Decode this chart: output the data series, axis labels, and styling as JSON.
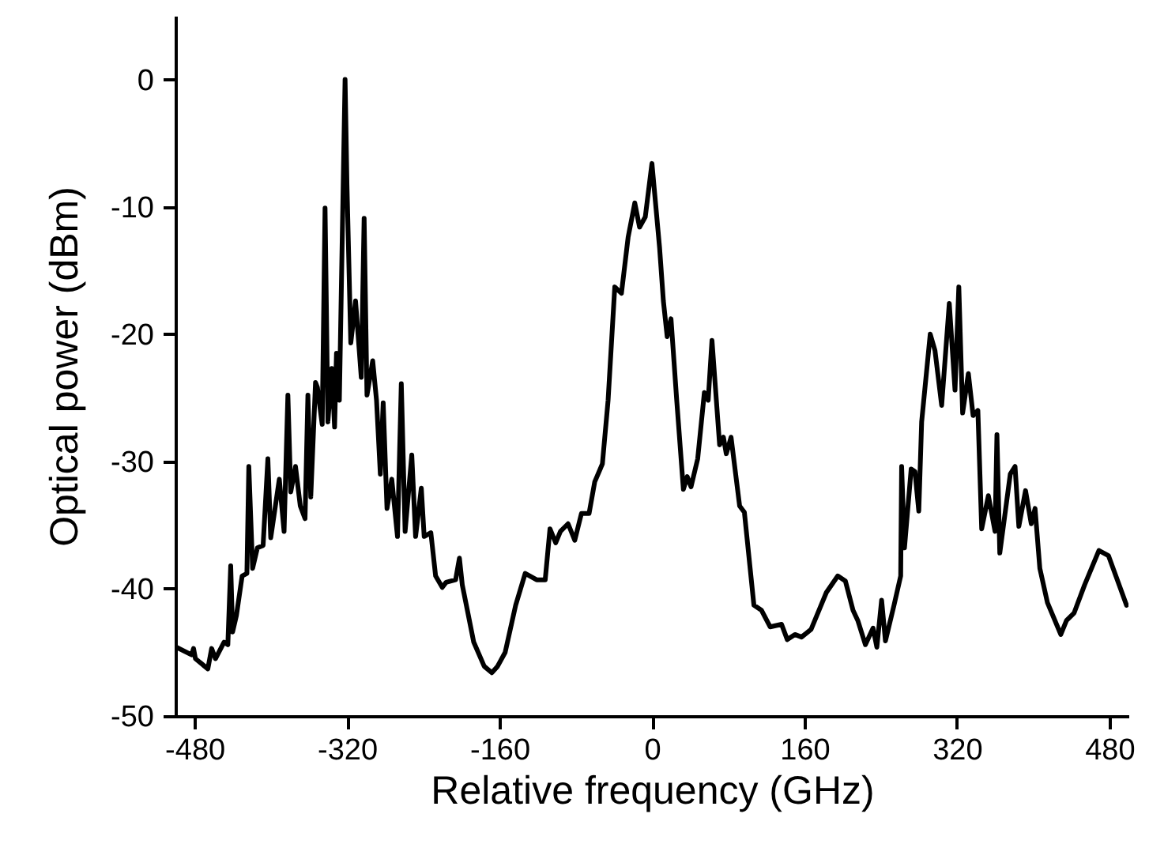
{
  "chart_data": {
    "type": "line",
    "xlabel": "Relative frequency (GHz)",
    "ylabel": "Optical power (dBm)",
    "xlim": [
      -500,
      500
    ],
    "xticks": [
      -480,
      -320,
      -160,
      0,
      160,
      320,
      480
    ],
    "ylim": [
      -50,
      5
    ],
    "yticks": [
      -50,
      -40,
      -30,
      -20,
      -10,
      0
    ],
    "grid": false,
    "marker": "none",
    "line_style": "solid",
    "series": [
      {
        "color": "#000000",
        "x": [
          -499,
          -483,
          -481,
          -479,
          -466,
          -462,
          -458,
          -449,
          -445,
          -442,
          -440,
          -436,
          -430,
          -425,
          -423,
          -419,
          -414,
          -408,
          -403,
          -400,
          -391,
          -386,
          -382,
          -379,
          -374,
          -369,
          -364,
          -361,
          -358,
          -353,
          -351,
          -346,
          -343,
          -340,
          -336,
          -333,
          -331,
          -328,
          -322,
          -320,
          -316,
          -311,
          -309,
          -305,
          -302,
          -299,
          -293,
          -289,
          -285,
          -282,
          -278,
          -273,
          -267,
          -263,
          -259,
          -252,
          -248,
          -242,
          -239,
          -232,
          -227,
          -220,
          -216,
          -206,
          -202,
          -199,
          -187,
          -176,
          -168,
          -162,
          -154,
          -143,
          -133,
          -121,
          -112,
          -107,
          -101,
          -96,
          -88,
          -81,
          -74,
          -66,
          -60,
          -52,
          -46,
          -39,
          -32,
          -25,
          -18,
          -13,
          -7,
          0,
          8,
          12,
          16,
          20,
          26,
          33,
          37,
          41,
          48,
          55,
          59,
          63,
          71,
          75,
          78,
          83,
          92,
          97,
          107,
          115,
          124,
          136,
          142,
          150,
          157,
          167,
          183,
          195,
          203,
          211,
          216,
          224,
          232,
          236,
          241,
          245,
          254,
          261,
          262,
          265,
          272,
          276,
          280,
          283,
          292,
          297,
          304,
          312,
          318,
          322,
          326,
          332,
          337,
          342,
          346,
          353,
          360,
          362,
          365,
          376,
          381,
          385,
          392,
          398,
          402,
          407,
          415,
          429,
          435,
          443,
          454,
          469,
          479,
          498
        ],
        "values": [
          -44.6,
          -45.2,
          -44.7,
          -45.5,
          -46.3,
          -44.7,
          -45.5,
          -44.2,
          -44.4,
          -38.2,
          -43.4,
          -42.1,
          -39.0,
          -38.8,
          -30.4,
          -38.4,
          -36.8,
          -36.6,
          -29.8,
          -36.0,
          -31.4,
          -35.5,
          -24.8,
          -32.4,
          -30.4,
          -33.5,
          -34.5,
          -24.8,
          -32.8,
          -23.8,
          -24.2,
          -27.1,
          -10.1,
          -26.9,
          -22.7,
          -27.3,
          -21.5,
          -25.2,
          0,
          -8.3,
          -20.7,
          -17.4,
          -19.4,
          -23.4,
          -10.9,
          -24.8,
          -22.1,
          -25.2,
          -31.0,
          -25.4,
          -33.7,
          -31.4,
          -35.9,
          -23.9,
          -35.5,
          -29.5,
          -35.9,
          -32.1,
          -35.9,
          -35.6,
          -39.0,
          -39.9,
          -39.5,
          -39.3,
          -37.6,
          -39.7,
          -44.2,
          -46.1,
          -46.6,
          -46.1,
          -45.0,
          -41.3,
          -38.8,
          -39.3,
          -39.3,
          -35.3,
          -36.4,
          -35.5,
          -34.9,
          -36.2,
          -34.1,
          -34.1,
          -31.6,
          -30.2,
          -25.2,
          -16.3,
          -16.8,
          -12.4,
          -9.7,
          -11.6,
          -10.8,
          -6.6,
          -13.2,
          -17.4,
          -20.2,
          -18.8,
          -25.2,
          -32.2,
          -31.2,
          -32.0,
          -29.8,
          -24.6,
          -25.2,
          -20.5,
          -28.7,
          -28.1,
          -29.4,
          -28.1,
          -33.5,
          -34.0,
          -41.3,
          -41.7,
          -43.0,
          -42.8,
          -44.0,
          -43.6,
          -43.8,
          -43.2,
          -40.3,
          -39.0,
          -39.4,
          -41.7,
          -42.5,
          -44.4,
          -43.1,
          -44.6,
          -40.9,
          -44.1,
          -41.3,
          -39.0,
          -30.4,
          -36.8,
          -30.6,
          -30.8,
          -33.9,
          -26.9,
          -20.0,
          -21.3,
          -25.6,
          -17.6,
          -24.4,
          -16.3,
          -26.2,
          -23.1,
          -26.4,
          -26.0,
          -35.3,
          -32.7,
          -35.5,
          -27.9,
          -37.2,
          -31.0,
          -30.4,
          -35.1,
          -32.3,
          -34.9,
          -33.7,
          -38.4,
          -41.1,
          -43.6,
          -42.5,
          -41.9,
          -39.7,
          -37.0,
          -37.4,
          -41.3
        ]
      }
    ]
  }
}
